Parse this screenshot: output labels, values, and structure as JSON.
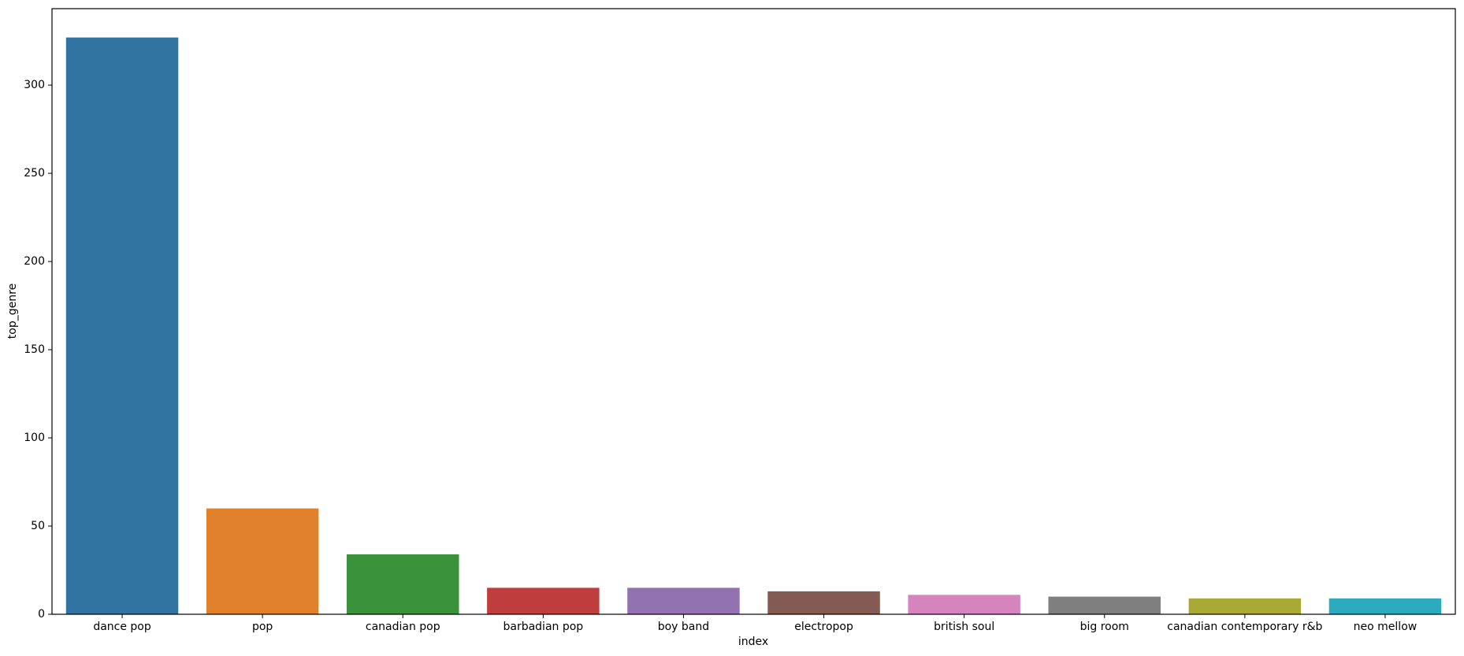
{
  "chart_data": {
    "type": "bar",
    "x_label": "index",
    "y_label": "top_genre",
    "categories": [
      "dance pop",
      "pop",
      "canadian pop",
      "barbadian pop",
      "boy band",
      "electropop",
      "british soul",
      "big room",
      "canadian contemporary r&b",
      "neo mellow"
    ],
    "values": [
      327,
      60,
      34,
      15,
      15,
      13,
      11,
      10,
      9,
      9
    ],
    "colors": [
      "#3274a1",
      "#e1812c",
      "#3a923a",
      "#c03d3e",
      "#9372b2",
      "#845b53",
      "#d684bd",
      "#7f7f7f",
      "#a9aa35",
      "#2eaabf"
    ],
    "ylim": [
      0,
      343.35
    ],
    "yticks": [
      0,
      50,
      100,
      150,
      200,
      250,
      300
    ],
    "grid": false
  }
}
